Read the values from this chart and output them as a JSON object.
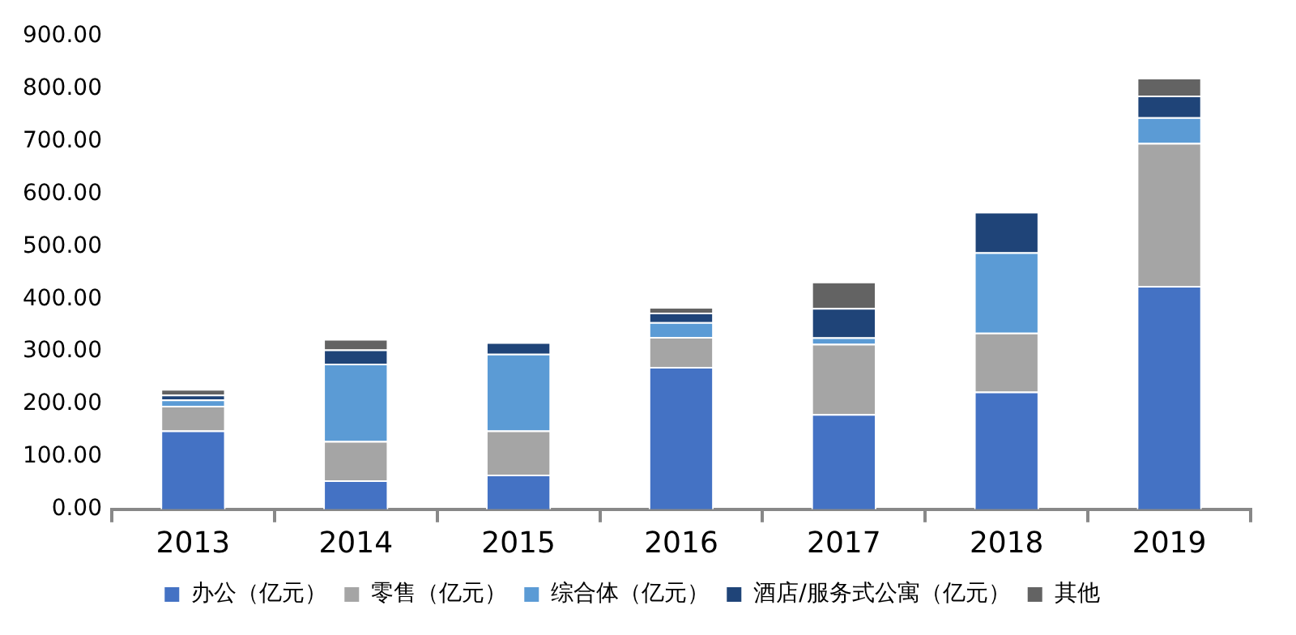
{
  "chart_data": {
    "type": "bar",
    "stacked": true,
    "categories": [
      "2013",
      "2014",
      "2015",
      "2016",
      "2017",
      "2018",
      "2019"
    ],
    "series": [
      {
        "name": "办公（亿元）",
        "color": "#4472c4",
        "values": [
          150,
          55,
          66,
          271,
          181,
          224,
          425
        ]
      },
      {
        "name": "零售（亿元）",
        "color": "#a5a5a5",
        "values": [
          47,
          75,
          84,
          57,
          134,
          112,
          272
        ]
      },
      {
        "name": "综合体（亿元）",
        "color": "#5b9bd5",
        "values": [
          12,
          147,
          146,
          28,
          12,
          153,
          49
        ]
      },
      {
        "name": "酒店/服务式公寓（亿元）",
        "color": "#1f4478",
        "values": [
          9,
          27,
          22,
          18,
          56,
          77,
          41
        ]
      },
      {
        "name": "其他",
        "color": "#636363",
        "values": [
          11,
          20,
          0,
          11,
          50,
          0,
          34
        ]
      }
    ],
    "ylim": [
      0,
      900
    ],
    "yticks": [
      {
        "value": 0,
        "label": "0.00"
      },
      {
        "value": 100,
        "label": "100.00"
      },
      {
        "value": 200,
        "label": "200.00"
      },
      {
        "value": 300,
        "label": "300.00"
      },
      {
        "value": 400,
        "label": "400.00"
      },
      {
        "value": 500,
        "label": "500.00"
      },
      {
        "value": 600,
        "label": "600.00"
      },
      {
        "value": 700,
        "label": "700.00"
      },
      {
        "value": 800,
        "label": "800.00"
      },
      {
        "value": 900,
        "label": "900.00"
      }
    ],
    "grid": false,
    "legend": "bottom"
  }
}
